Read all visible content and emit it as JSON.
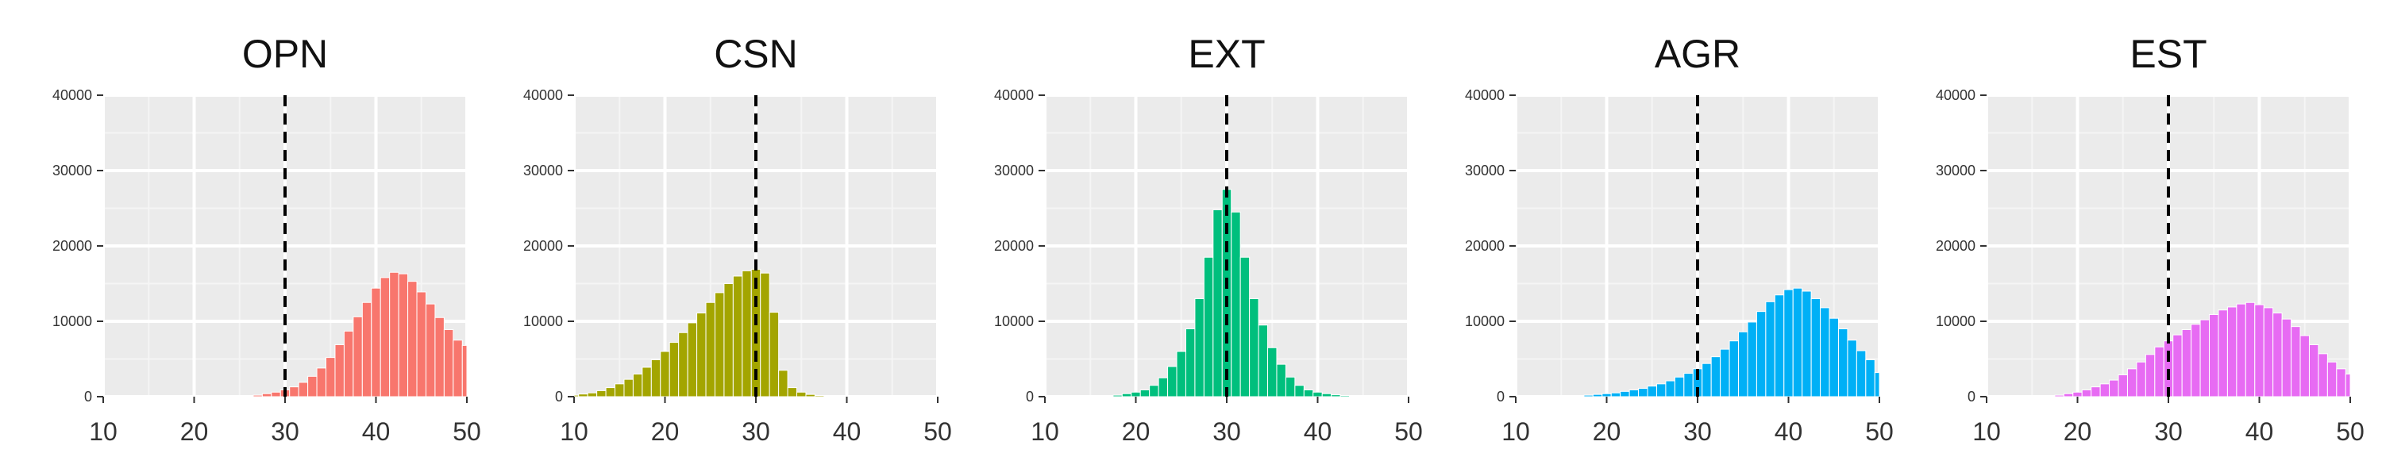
{
  "chart_data": [
    {
      "type": "bar",
      "title": "OPN",
      "color": "#F8766D",
      "xlim": [
        10,
        50
      ],
      "ylim": [
        0,
        40000
      ],
      "x_ticks": [
        10,
        20,
        30,
        40,
        50
      ],
      "y_ticks": [
        0,
        10000,
        20000,
        30000,
        40000
      ],
      "grid": true,
      "reference_line": {
        "x": 30,
        "style": "dashed"
      },
      "bin_width": 1,
      "x": [
        24,
        25,
        26,
        27,
        28,
        29,
        30,
        31,
        32,
        33,
        34,
        35,
        36,
        37,
        38,
        39,
        40,
        41,
        42,
        43,
        44,
        45,
        46,
        47,
        48,
        49,
        50
      ],
      "values": [
        10,
        30,
        80,
        200,
        400,
        600,
        900,
        1300,
        1900,
        2700,
        3800,
        5200,
        6900,
        8700,
        10600,
        12500,
        14400,
        15800,
        16500,
        16300,
        15300,
        13900,
        12300,
        10500,
        8900,
        7500,
        6800
      ]
    },
    {
      "type": "bar",
      "title": "CSN",
      "color": "#A3A500",
      "xlim": [
        10,
        50
      ],
      "ylim": [
        0,
        40000
      ],
      "x_ticks": [
        10,
        20,
        30,
        40,
        50
      ],
      "y_ticks": [
        0,
        10000,
        20000,
        30000,
        40000
      ],
      "grid": true,
      "reference_line": {
        "x": 30,
        "style": "dashed"
      },
      "bin_width": 1,
      "x": [
        10,
        11,
        12,
        13,
        14,
        15,
        16,
        17,
        18,
        19,
        20,
        21,
        22,
        23,
        24,
        25,
        26,
        27,
        28,
        29,
        30,
        31,
        32,
        33,
        34,
        35,
        36,
        37
      ],
      "values": [
        200,
        350,
        500,
        800,
        1200,
        1700,
        2300,
        3000,
        3900,
        4900,
        6000,
        7200,
        8500,
        9800,
        11100,
        12500,
        13800,
        15000,
        16000,
        16700,
        16900,
        16400,
        11200,
        3500,
        1200,
        600,
        300,
        150
      ]
    },
    {
      "type": "bar",
      "title": "EXT",
      "color": "#00BF7D",
      "xlim": [
        10,
        50
      ],
      "ylim": [
        0,
        40000
      ],
      "x_ticks": [
        10,
        20,
        30,
        40,
        50
      ],
      "y_ticks": [
        0,
        10000,
        20000,
        30000,
        40000
      ],
      "grid": true,
      "reference_line": {
        "x": 30,
        "style": "dashed"
      },
      "bin_width": 1,
      "x": [
        17,
        18,
        19,
        20,
        21,
        22,
        23,
        24,
        25,
        26,
        27,
        28,
        29,
        30,
        31,
        32,
        33,
        34,
        35,
        36,
        37,
        38,
        39,
        40,
        41,
        42,
        43,
        44,
        45
      ],
      "values": [
        100,
        200,
        400,
        600,
        900,
        1500,
        2500,
        4000,
        6000,
        9000,
        13000,
        18500,
        24800,
        27500,
        24500,
        18500,
        13000,
        9500,
        6500,
        4300,
        2600,
        1500,
        900,
        600,
        400,
        250,
        150,
        80,
        40
      ]
    },
    {
      "type": "bar",
      "title": "AGR",
      "color": "#00B0F6",
      "xlim": [
        10,
        50
      ],
      "ylim": [
        0,
        40000
      ],
      "x_ticks": [
        10,
        20,
        30,
        40,
        50
      ],
      "y_ticks": [
        0,
        10000,
        20000,
        30000,
        40000
      ],
      "grid": true,
      "reference_line": {
        "x": 30,
        "style": "dashed"
      },
      "bin_width": 1,
      "x": [
        17,
        18,
        19,
        20,
        21,
        22,
        23,
        24,
        25,
        26,
        27,
        28,
        29,
        30,
        31,
        32,
        33,
        34,
        35,
        36,
        37,
        38,
        39,
        40,
        41,
        42,
        43,
        44,
        45,
        46,
        47,
        48,
        49,
        50
      ],
      "values": [
        100,
        200,
        300,
        400,
        500,
        700,
        900,
        1100,
        1400,
        1700,
        2100,
        2600,
        3100,
        3700,
        4400,
        5300,
        6300,
        7400,
        8600,
        9900,
        11300,
        12600,
        13500,
        14200,
        14400,
        14000,
        13000,
        11800,
        10400,
        9000,
        7500,
        6100,
        4900,
        3200
      ]
    },
    {
      "type": "bar",
      "title": "EST",
      "color": "#E76BF3",
      "xlim": [
        10,
        50
      ],
      "ylim": [
        0,
        40000
      ],
      "x_ticks": [
        10,
        20,
        30,
        40,
        50
      ],
      "y_ticks": [
        0,
        10000,
        20000,
        30000,
        40000
      ],
      "grid": true,
      "reference_line": {
        "x": 30,
        "style": "dashed"
      },
      "bin_width": 1,
      "x": [
        17,
        18,
        19,
        20,
        21,
        22,
        23,
        24,
        25,
        26,
        27,
        28,
        29,
        30,
        31,
        32,
        33,
        34,
        35,
        36,
        37,
        38,
        39,
        40,
        41,
        42,
        43,
        44,
        45,
        46,
        47,
        48,
        49,
        50
      ],
      "values": [
        100,
        200,
        400,
        600,
        900,
        1300,
        1700,
        2200,
        2900,
        3700,
        4600,
        5600,
        6600,
        7400,
        8200,
        8900,
        9600,
        10200,
        10900,
        11500,
        11900,
        12300,
        12500,
        12200,
        11800,
        11100,
        10300,
        9300,
        8100,
        6900,
        5700,
        4600,
        3700,
        3000
      ]
    }
  ]
}
